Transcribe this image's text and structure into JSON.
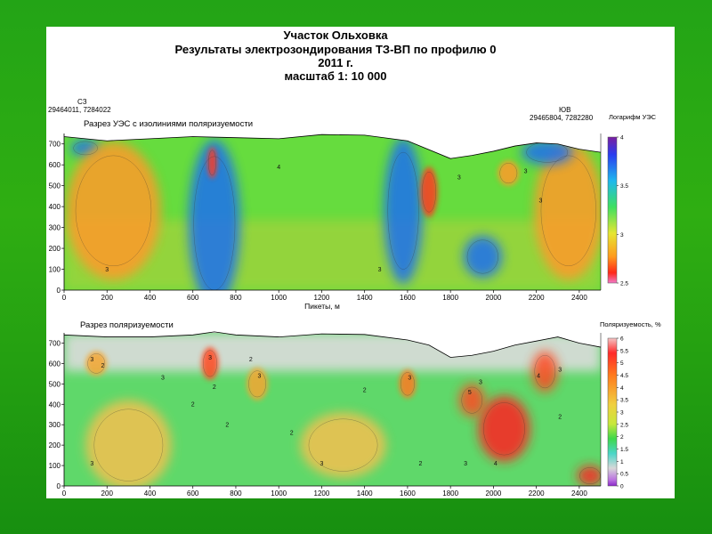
{
  "title": {
    "line1": "Участок Ольховка",
    "line2": "Результаты электрозондирования ТЗ-ВП по профилю 0",
    "line3": "2011 г.",
    "line4": "масштаб 1: 10 000"
  },
  "profile_ends": {
    "left_label": "СЗ",
    "left_coords": "29464011, 7284022",
    "right_label": "ЮВ",
    "right_coords": "29465804, 7282280"
  },
  "colors": {
    "background_green": "#2fae12",
    "paper": "#ffffff"
  },
  "chart_data": [
    {
      "type": "heatmap",
      "title": "Разрез УЭС с изолиниями поляризуемости",
      "xlabel": "Пикеты, м",
      "ylabel": "",
      "xlim": [
        0,
        2500
      ],
      "ylim": [
        0,
        750
      ],
      "x_ticks": [
        0,
        200,
        400,
        600,
        800,
        1000,
        1200,
        1400,
        1600,
        1800,
        2000,
        2200,
        2400
      ],
      "y_ticks": [
        0,
        100,
        200,
        300,
        400,
        500,
        600,
        700
      ],
      "colorbar": {
        "title": "Логарифм УЭС",
        "ticks": [
          "4",
          "3.5",
          "3",
          "2.5"
        ],
        "range": [
          2.5,
          4
        ]
      },
      "surface": [
        [
          0,
          735
        ],
        [
          200,
          715
        ],
        [
          400,
          725
        ],
        [
          600,
          735
        ],
        [
          800,
          730
        ],
        [
          1000,
          725
        ],
        [
          1200,
          745
        ],
        [
          1400,
          742
        ],
        [
          1600,
          715
        ],
        [
          1800,
          630
        ],
        [
          1900,
          645
        ],
        [
          2000,
          665
        ],
        [
          2100,
          690
        ],
        [
          2200,
          705
        ],
        [
          2300,
          700
        ],
        [
          2400,
          675
        ],
        [
          2500,
          660
        ]
      ],
      "anomalies": [
        {
          "x": 100,
          "y": 680,
          "rx": 70,
          "ry": 40,
          "level": "high"
        },
        {
          "x": 230,
          "y": 380,
          "rx": 220,
          "ry": 330,
          "level": "low-moderate"
        },
        {
          "x": 700,
          "y": 320,
          "rx": 120,
          "ry": 400,
          "level": "high"
        },
        {
          "x": 690,
          "y": 610,
          "rx": 22,
          "ry": 75,
          "level": "very-low"
        },
        {
          "x": 1580,
          "y": 380,
          "rx": 90,
          "ry": 350,
          "level": "high"
        },
        {
          "x": 1700,
          "y": 470,
          "rx": 40,
          "ry": 120,
          "level": "very-low"
        },
        {
          "x": 1950,
          "y": 160,
          "rx": 90,
          "ry": 100,
          "level": "high"
        },
        {
          "x": 2350,
          "y": 380,
          "rx": 160,
          "ry": 330,
          "level": "low-moderate"
        },
        {
          "x": 2070,
          "y": 560,
          "rx": 50,
          "ry": 60,
          "level": "low-moderate"
        },
        {
          "x": 2250,
          "y": 660,
          "rx": 120,
          "ry": 60,
          "level": "high"
        }
      ],
      "contour_labels": [
        {
          "text": "3",
          "x": 200,
          "y": 90
        },
        {
          "text": "3",
          "x": 1470,
          "y": 90
        },
        {
          "text": "3",
          "x": 1840,
          "y": 530
        },
        {
          "text": "3",
          "x": 2150,
          "y": 560
        },
        {
          "text": "4",
          "x": 1000,
          "y": 580
        },
        {
          "text": "3",
          "x": 2220,
          "y": 420
        }
      ]
    },
    {
      "type": "heatmap",
      "title": "Разрез поляризуемости",
      "xlabel": "",
      "ylabel": "",
      "xlim": [
        0,
        2500
      ],
      "ylim": [
        0,
        750
      ],
      "x_ticks": [
        0,
        200,
        400,
        600,
        800,
        1000,
        1200,
        1400,
        1600,
        1800,
        2000,
        2200,
        2400
      ],
      "y_ticks": [
        0,
        100,
        200,
        300,
        400,
        500,
        600,
        700
      ],
      "colorbar": {
        "title": "Поляризуемость, %",
        "ticks": [
          "6",
          "5.5",
          "5",
          "4.5",
          "4",
          "3.5",
          "3",
          "2.5",
          "2",
          "1.5",
          "1",
          "0.5",
          "0"
        ],
        "range": [
          0,
          6
        ]
      },
      "surface": [
        [
          0,
          740
        ],
        [
          200,
          730
        ],
        [
          400,
          730
        ],
        [
          600,
          740
        ],
        [
          700,
          755
        ],
        [
          800,
          740
        ],
        [
          1000,
          730
        ],
        [
          1200,
          745
        ],
        [
          1400,
          742
        ],
        [
          1600,
          715
        ],
        [
          1700,
          690
        ],
        [
          1800,
          630
        ],
        [
          1900,
          640
        ],
        [
          2000,
          660
        ],
        [
          2100,
          690
        ],
        [
          2200,
          710
        ],
        [
          2300,
          730
        ],
        [
          2400,
          700
        ],
        [
          2500,
          680
        ]
      ],
      "anomalies": [
        {
          "x": 2050,
          "y": 280,
          "rx": 120,
          "ry": 160,
          "level": 5.5
        },
        {
          "x": 1900,
          "y": 420,
          "rx": 60,
          "ry": 80,
          "level": 5.0
        },
        {
          "x": 2240,
          "y": 560,
          "rx": 60,
          "ry": 100,
          "level": 4.5
        },
        {
          "x": 680,
          "y": 600,
          "rx": 40,
          "ry": 80,
          "level": 4.5
        },
        {
          "x": 1600,
          "y": 500,
          "rx": 40,
          "ry": 70,
          "level": 4.0
        },
        {
          "x": 300,
          "y": 200,
          "rx": 200,
          "ry": 220,
          "level": 3.3
        },
        {
          "x": 1300,
          "y": 200,
          "rx": 200,
          "ry": 160,
          "level": 3.0
        },
        {
          "x": 150,
          "y": 600,
          "rx": 50,
          "ry": 60,
          "level": 3.8
        },
        {
          "x": 900,
          "y": 500,
          "rx": 50,
          "ry": 80,
          "level": 3.5
        },
        {
          "x": 2450,
          "y": 50,
          "rx": 60,
          "ry": 50,
          "level": 6.0
        }
      ],
      "contour_labels": [
        {
          "text": "3",
          "x": 130,
          "y": 610
        },
        {
          "text": "2",
          "x": 180,
          "y": 580
        },
        {
          "text": "3",
          "x": 130,
          "y": 100
        },
        {
          "text": "3",
          "x": 460,
          "y": 520
        },
        {
          "text": "3",
          "x": 680,
          "y": 620
        },
        {
          "text": "2",
          "x": 700,
          "y": 475
        },
        {
          "text": "2",
          "x": 760,
          "y": 290
        },
        {
          "text": "2",
          "x": 600,
          "y": 390
        },
        {
          "text": "2",
          "x": 870,
          "y": 610
        },
        {
          "text": "3",
          "x": 910,
          "y": 530
        },
        {
          "text": "2",
          "x": 1060,
          "y": 250
        },
        {
          "text": "3",
          "x": 1200,
          "y": 100
        },
        {
          "text": "2",
          "x": 1400,
          "y": 460
        },
        {
          "text": "3",
          "x": 1610,
          "y": 520
        },
        {
          "text": "2",
          "x": 1660,
          "y": 100
        },
        {
          "text": "3",
          "x": 1870,
          "y": 100
        },
        {
          "text": "5",
          "x": 1890,
          "y": 450
        },
        {
          "text": "3",
          "x": 1940,
          "y": 500
        },
        {
          "text": "4",
          "x": 2010,
          "y": 100
        },
        {
          "text": "4",
          "x": 2210,
          "y": 530
        },
        {
          "text": "3",
          "x": 2310,
          "y": 560
        },
        {
          "text": "2",
          "x": 2310,
          "y": 330
        }
      ]
    }
  ]
}
